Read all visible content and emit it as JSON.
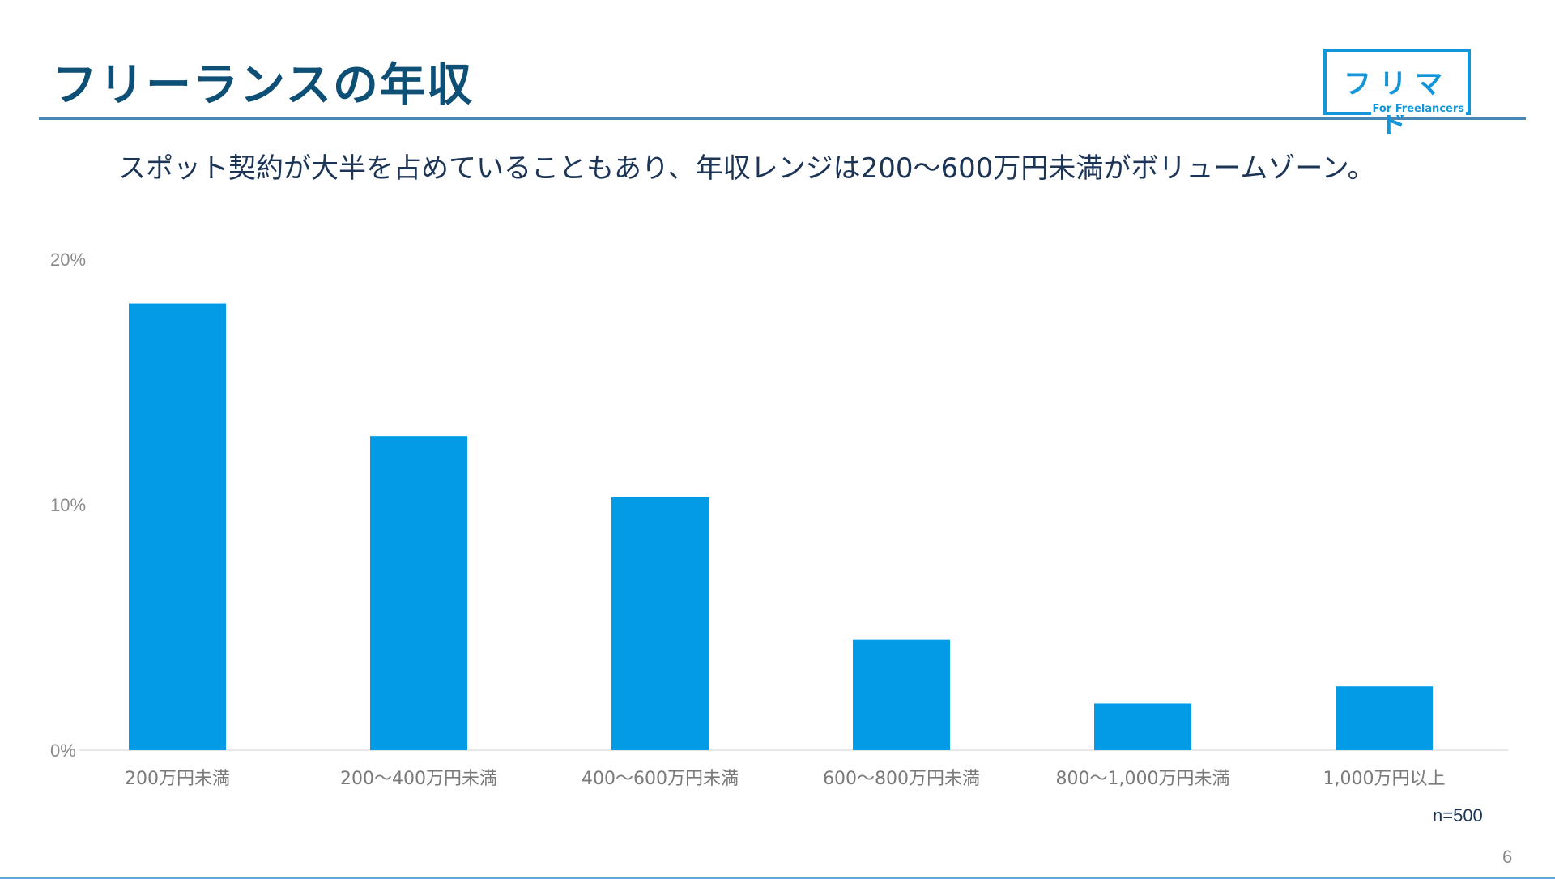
{
  "header": {
    "title": "フリーランスの年収",
    "subtitle": "スポット契約が大半を占めていることもあり、年収レンジは200〜600万円未満がボリュームゾーン。"
  },
  "logo": {
    "main": "フリマド",
    "sub": "For Freelancers"
  },
  "colors": {
    "title": "#0d4f75",
    "bar": "#039be5",
    "accent": "#1296d9"
  },
  "chart_data": {
    "type": "bar",
    "categories": [
      "200万円未満",
      "200〜400万円未満",
      "400〜600万円未満",
      "600〜800万円未満",
      "800〜1,000万円未満",
      "1,000万円以上"
    ],
    "values": [
      18.2,
      12.8,
      10.3,
      4.5,
      1.9,
      2.6
    ],
    "ylim": [
      0,
      20
    ],
    "yticks": [
      0,
      10,
      20
    ],
    "ytick_labels": [
      "0%",
      "10%",
      "20%"
    ],
    "grid": false
  },
  "footer": {
    "note": "n=500",
    "page_number": "6"
  }
}
